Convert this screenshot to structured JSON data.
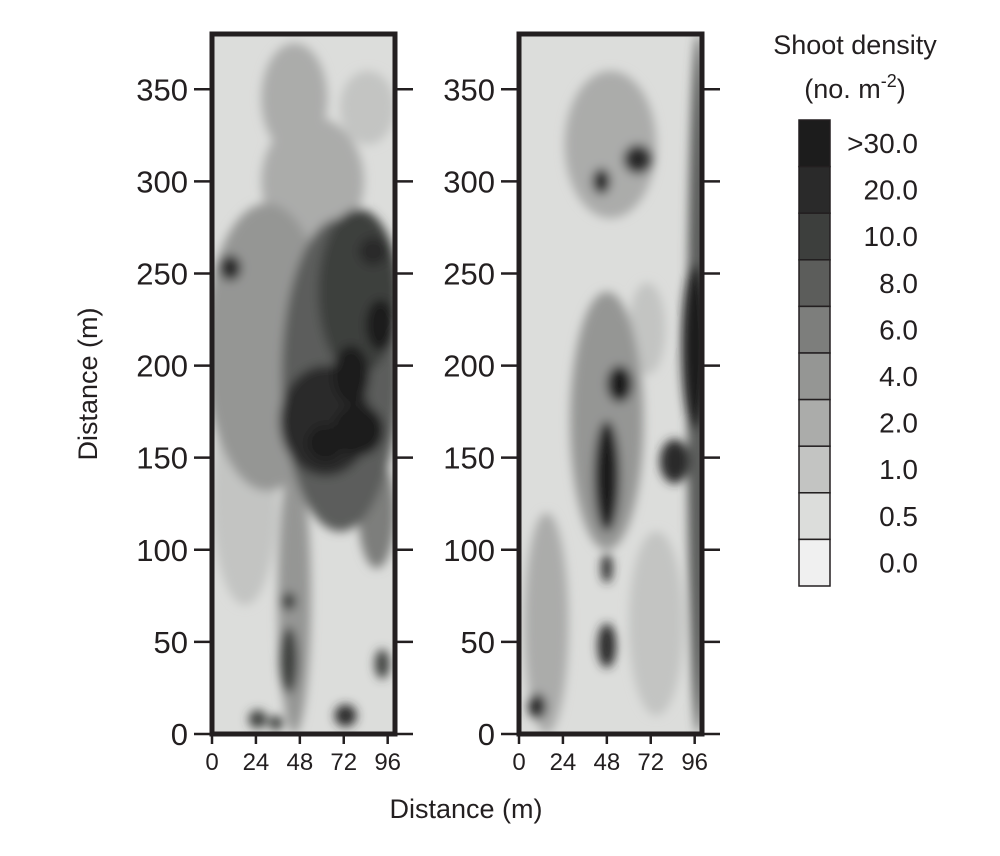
{
  "chart_data": {
    "type": "heatmap",
    "panels": [
      {
        "name": "",
        "xlabel": "",
        "ylabel": "Distance (m)",
        "xlim": [
          0,
          100
        ],
        "ylim": [
          0,
          380
        ],
        "x_ticks": [
          0,
          24,
          48,
          72,
          96
        ],
        "y_ticks": [
          0,
          50,
          100,
          150,
          200,
          250,
          300,
          350
        ],
        "density_blobs": [
          {
            "x": 30,
            "y": 210,
            "rx": 34,
            "ry": 78,
            "level": 4
          },
          {
            "x": 70,
            "y": 195,
            "rx": 32,
            "ry": 85,
            "level": 6
          },
          {
            "x": 80,
            "y": 240,
            "rx": 22,
            "ry": 45,
            "level": 7
          },
          {
            "x": 62,
            "y": 170,
            "rx": 25,
            "ry": 30,
            "level": 8
          },
          {
            "x": 80,
            "y": 165,
            "rx": 14,
            "ry": 14,
            "level": 9
          },
          {
            "x": 62,
            "y": 158,
            "rx": 10,
            "ry": 10,
            "level": 9
          },
          {
            "x": 76,
            "y": 195,
            "rx": 10,
            "ry": 16,
            "level": 9
          },
          {
            "x": 92,
            "y": 222,
            "rx": 8,
            "ry": 14,
            "level": 9
          },
          {
            "x": 88,
            "y": 262,
            "rx": 8,
            "ry": 8,
            "level": 8
          },
          {
            "x": 10,
            "y": 253,
            "rx": 6,
            "ry": 7,
            "level": 8
          },
          {
            "x": 75,
            "y": 276,
            "rx": 6,
            "ry": 7,
            "level": 7
          },
          {
            "x": 45,
            "y": 75,
            "rx": 9,
            "ry": 75,
            "level": 4
          },
          {
            "x": 42,
            "y": 40,
            "rx": 5,
            "ry": 18,
            "level": 7
          },
          {
            "x": 42,
            "y": 72,
            "rx": 4,
            "ry": 5,
            "level": 7
          },
          {
            "x": 25,
            "y": 8,
            "rx": 5,
            "ry": 5,
            "level": 7
          },
          {
            "x": 35,
            "y": 6,
            "rx": 4,
            "ry": 4,
            "level": 7
          },
          {
            "x": 73,
            "y": 10,
            "rx": 6,
            "ry": 6,
            "level": 8
          },
          {
            "x": 93,
            "y": 38,
            "rx": 4,
            "ry": 8,
            "level": 7
          },
          {
            "x": 55,
            "y": 300,
            "rx": 28,
            "ry": 35,
            "level": 3
          },
          {
            "x": 45,
            "y": 345,
            "rx": 18,
            "ry": 30,
            "level": 3
          },
          {
            "x": 18,
            "y": 130,
            "rx": 18,
            "ry": 60,
            "level": 2
          },
          {
            "x": 85,
            "y": 340,
            "rx": 15,
            "ry": 20,
            "level": 2
          },
          {
            "x": 90,
            "y": 120,
            "rx": 10,
            "ry": 30,
            "level": 5
          }
        ]
      },
      {
        "name": "",
        "xlabel": "",
        "ylabel": "",
        "xlim": [
          0,
          100
        ],
        "ylim": [
          0,
          380
        ],
        "x_ticks": [
          0,
          24,
          48,
          72,
          96
        ],
        "y_ticks": [
          0,
          50,
          100,
          150,
          200,
          250,
          300,
          350
        ],
        "density_blobs": [
          {
            "x": 98,
            "y": 190,
            "rx": 6,
            "ry": 190,
            "level": 6
          },
          {
            "x": 96,
            "y": 210,
            "rx": 7,
            "ry": 45,
            "level": 9
          },
          {
            "x": 48,
            "y": 140,
            "rx": 7,
            "ry": 30,
            "level": 9
          },
          {
            "x": 48,
            "y": 170,
            "rx": 20,
            "ry": 70,
            "level": 4
          },
          {
            "x": 55,
            "y": 190,
            "rx": 7,
            "ry": 10,
            "level": 9
          },
          {
            "x": 85,
            "y": 148,
            "rx": 8,
            "ry": 12,
            "level": 8
          },
          {
            "x": 48,
            "y": 48,
            "rx": 5,
            "ry": 12,
            "level": 8
          },
          {
            "x": 48,
            "y": 90,
            "rx": 3,
            "ry": 8,
            "level": 8
          },
          {
            "x": 10,
            "y": 15,
            "rx": 5,
            "ry": 7,
            "level": 8
          },
          {
            "x": 45,
            "y": 300,
            "rx": 5,
            "ry": 7,
            "level": 8
          },
          {
            "x": 65,
            "y": 312,
            "rx": 8,
            "ry": 8,
            "level": 8
          },
          {
            "x": 50,
            "y": 320,
            "rx": 25,
            "ry": 40,
            "level": 3
          },
          {
            "x": 15,
            "y": 60,
            "rx": 12,
            "ry": 60,
            "level": 3
          },
          {
            "x": 75,
            "y": 60,
            "rx": 15,
            "ry": 50,
            "level": 2
          },
          {
            "x": 70,
            "y": 220,
            "rx": 10,
            "ry": 25,
            "level": 2
          }
        ]
      }
    ],
    "xlabel": "Distance (m)",
    "legend": {
      "title_line1": "Shoot density",
      "title_line2_prefix": "(no. m",
      "title_line2_sup": "-2",
      "title_line2_suffix": ")",
      "placement": "right",
      "levels": [
        {
          "label": ">30.0",
          "color": "#1c1c1c"
        },
        {
          "label": "20.0",
          "color": "#2a2a2a"
        },
        {
          "label": "10.0",
          "color": "#3d3f3d"
        },
        {
          "label": "8.0",
          "color": "#5c5d5b"
        },
        {
          "label": "6.0",
          "color": "#7d7e7c"
        },
        {
          "label": "4.0",
          "color": "#959694"
        },
        {
          "label": "2.0",
          "color": "#abacaa"
        },
        {
          "label": "1.0",
          "color": "#c3c4c2"
        },
        {
          "label": "0.5",
          "color": "#dcdddb"
        },
        {
          "label": "0.0",
          "color": "#f0f0f0"
        }
      ]
    }
  }
}
